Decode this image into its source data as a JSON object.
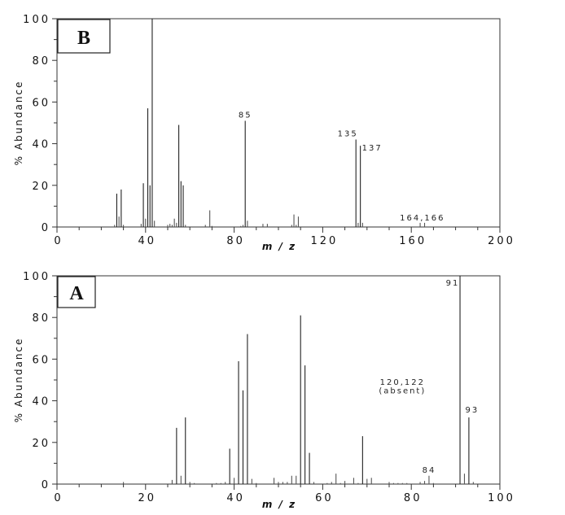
{
  "chart_data": [
    {
      "panel": "B",
      "type": "bar",
      "title": "",
      "xlabel": "m / z",
      "ylabel": "% Abundance",
      "xlim": [
        0,
        200
      ],
      "ylim": [
        0,
        100
      ],
      "x_major_ticks": [
        0,
        40,
        80,
        120,
        160,
        200
      ],
      "x_minor_step": 10,
      "y_major_ticks": [
        0,
        20,
        40,
        60,
        80,
        100
      ],
      "y_minor_step": 10,
      "grid": false,
      "annotations": [
        {
          "text": "85",
          "x": 85,
          "y": 51
        },
        {
          "text": "135",
          "x": 135,
          "y": 42
        },
        {
          "text": "137",
          "x": 137,
          "y": 39
        },
        {
          "text": "164,166",
          "x": 165,
          "y": 2
        }
      ],
      "peaks": [
        {
          "mz": 26,
          "abundance": 1
        },
        {
          "mz": 27,
          "abundance": 16
        },
        {
          "mz": 28,
          "abundance": 5
        },
        {
          "mz": 29,
          "abundance": 18
        },
        {
          "mz": 30,
          "abundance": 1
        },
        {
          "mz": 38,
          "abundance": 1.5
        },
        {
          "mz": 39,
          "abundance": 21
        },
        {
          "mz": 40,
          "abundance": 4
        },
        {
          "mz": 41,
          "abundance": 57
        },
        {
          "mz": 42,
          "abundance": 20
        },
        {
          "mz": 43,
          "abundance": 100
        },
        {
          "mz": 44,
          "abundance": 3
        },
        {
          "mz": 50,
          "abundance": 1
        },
        {
          "mz": 51,
          "abundance": 1.5
        },
        {
          "mz": 52,
          "abundance": 1
        },
        {
          "mz": 53,
          "abundance": 4
        },
        {
          "mz": 54,
          "abundance": 2
        },
        {
          "mz": 55,
          "abundance": 49
        },
        {
          "mz": 56,
          "abundance": 22
        },
        {
          "mz": 57,
          "abundance": 20
        },
        {
          "mz": 58,
          "abundance": 1
        },
        {
          "mz": 67,
          "abundance": 1
        },
        {
          "mz": 69,
          "abundance": 8
        },
        {
          "mz": 70,
          "abundance": 0.5
        },
        {
          "mz": 83,
          "abundance": 0.5
        },
        {
          "mz": 84,
          "abundance": 1
        },
        {
          "mz": 85,
          "abundance": 51
        },
        {
          "mz": 86,
          "abundance": 3
        },
        {
          "mz": 93,
          "abundance": 1.5
        },
        {
          "mz": 95,
          "abundance": 1.5
        },
        {
          "mz": 106,
          "abundance": 1
        },
        {
          "mz": 107,
          "abundance": 6
        },
        {
          "mz": 108,
          "abundance": 1
        },
        {
          "mz": 109,
          "abundance": 5
        },
        {
          "mz": 135,
          "abundance": 42
        },
        {
          "mz": 136,
          "abundance": 2
        },
        {
          "mz": 137,
          "abundance": 39
        },
        {
          "mz": 138,
          "abundance": 2
        },
        {
          "mz": 164,
          "abundance": 2
        },
        {
          "mz": 166,
          "abundance": 2
        }
      ]
    },
    {
      "panel": "A",
      "type": "bar",
      "title": "",
      "xlabel": "m / z",
      "ylabel": "% Abundance",
      "xlim": [
        0,
        100
      ],
      "ylim": [
        0,
        100
      ],
      "x_major_ticks": [
        0,
        20,
        40,
        60,
        80,
        100
      ],
      "x_minor_step": 5,
      "y_major_ticks": [
        0,
        20,
        40,
        60,
        80,
        100
      ],
      "y_minor_step": 10,
      "grid": false,
      "annotations": [
        {
          "text": "91",
          "x": 91,
          "y": 100
        },
        {
          "text": "93",
          "x": 93,
          "y": 32
        },
        {
          "text": "84",
          "x": 84,
          "y": 4
        },
        {
          "text": "120,122",
          "x": 78,
          "y": 46
        },
        {
          "text": "(absent)",
          "x": 78,
          "y": 42
        }
      ],
      "peaks": [
        {
          "mz": 15,
          "abundance": 1
        },
        {
          "mz": 26,
          "abundance": 2
        },
        {
          "mz": 27,
          "abundance": 27
        },
        {
          "mz": 28,
          "abundance": 4
        },
        {
          "mz": 29,
          "abundance": 32
        },
        {
          "mz": 30,
          "abundance": 1
        },
        {
          "mz": 31,
          "abundance": 0.5
        },
        {
          "mz": 36,
          "abundance": 0.5
        },
        {
          "mz": 37,
          "abundance": 0.5
        },
        {
          "mz": 38,
          "abundance": 1
        },
        {
          "mz": 39,
          "abundance": 17
        },
        {
          "mz": 40,
          "abundance": 3
        },
        {
          "mz": 41,
          "abundance": 59
        },
        {
          "mz": 42,
          "abundance": 45
        },
        {
          "mz": 43,
          "abundance": 72
        },
        {
          "mz": 44,
          "abundance": 2.5
        },
        {
          "mz": 45,
          "abundance": 0.5
        },
        {
          "mz": 49,
          "abundance": 3
        },
        {
          "mz": 50,
          "abundance": 1
        },
        {
          "mz": 51,
          "abundance": 1
        },
        {
          "mz": 52,
          "abundance": 1
        },
        {
          "mz": 53,
          "abundance": 4
        },
        {
          "mz": 54,
          "abundance": 4
        },
        {
          "mz": 55,
          "abundance": 81
        },
        {
          "mz": 56,
          "abundance": 57
        },
        {
          "mz": 57,
          "abundance": 15
        },
        {
          "mz": 58,
          "abundance": 1
        },
        {
          "mz": 61,
          "abundance": 0.5
        },
        {
          "mz": 62,
          "abundance": 1
        },
        {
          "mz": 63,
          "abundance": 5
        },
        {
          "mz": 64,
          "abundance": 0.5
        },
        {
          "mz": 65,
          "abundance": 1.5
        },
        {
          "mz": 67,
          "abundance": 3
        },
        {
          "mz": 68,
          "abundance": 0.5
        },
        {
          "mz": 69,
          "abundance": 23
        },
        {
          "mz": 70,
          "abundance": 2.5
        },
        {
          "mz": 71,
          "abundance": 3
        },
        {
          "mz": 75,
          "abundance": 1
        },
        {
          "mz": 76,
          "abundance": 0.5
        },
        {
          "mz": 77,
          "abundance": 0.5
        },
        {
          "mz": 78,
          "abundance": 0.5
        },
        {
          "mz": 79,
          "abundance": 0.5
        },
        {
          "mz": 82,
          "abundance": 1
        },
        {
          "mz": 83,
          "abundance": 1.5
        },
        {
          "mz": 84,
          "abundance": 4
        },
        {
          "mz": 85,
          "abundance": 0.5
        },
        {
          "mz": 91,
          "abundance": 100
        },
        {
          "mz": 92,
          "abundance": 5
        },
        {
          "mz": 93,
          "abundance": 32
        },
        {
          "mz": 94,
          "abundance": 1
        }
      ]
    }
  ],
  "panels": {
    "B": {
      "letter": "B",
      "ylabel": "% Abundance",
      "xlabel": "m / z"
    },
    "A": {
      "letter": "A",
      "ylabel": "% Abundance",
      "xlabel": "m / z"
    }
  }
}
